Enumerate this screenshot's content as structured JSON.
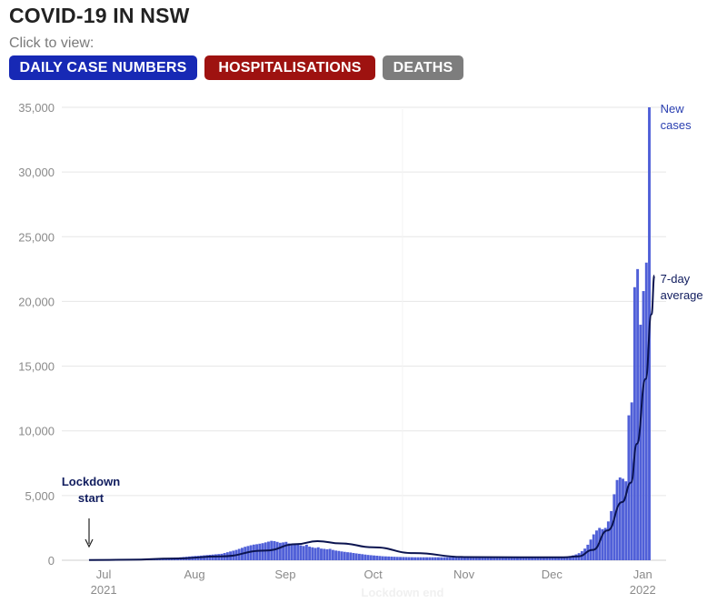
{
  "header": {
    "title": "COVID-19 IN NSW",
    "subtitle": "Click to view:"
  },
  "buttons": {
    "cases": "DAILY CASE NUMBERS",
    "hospitalisations": "HOSPITALISATIONS",
    "deaths": "DEATHS"
  },
  "colors": {
    "bars": "#5060d8",
    "average_line": "#0b1450",
    "grid": "#e6e6e6",
    "cases_button": "#1729b5",
    "hosp_button": "#9e1210",
    "deaths_button": "#7d7d7d"
  },
  "chart_data": {
    "type": "bar",
    "title": "",
    "xlabel": "",
    "ylabel": "",
    "ylim": [
      0,
      35000
    ],
    "y_ticks": [
      0,
      5000,
      10000,
      15000,
      20000,
      25000,
      30000,
      35000
    ],
    "y_tick_labels": [
      "0",
      "5,000",
      "10,000",
      "15,000",
      "20,000",
      "25,000",
      "30,000",
      "35,000"
    ],
    "x_range": [
      "2021-06-26",
      "2022-01-09"
    ],
    "x_ticks": [
      {
        "date": "2021-07-01",
        "label": "Jul",
        "sublabel": "2021"
      },
      {
        "date": "2021-08-01",
        "label": "Aug",
        "sublabel": ""
      },
      {
        "date": "2021-09-01",
        "label": "Sep",
        "sublabel": ""
      },
      {
        "date": "2021-10-01",
        "label": "Oct",
        "sublabel": ""
      },
      {
        "date": "2021-11-01",
        "label": "Nov",
        "sublabel": ""
      },
      {
        "date": "2021-12-01",
        "label": "Dec",
        "sublabel": ""
      },
      {
        "date": "2022-01-01",
        "label": "Jan",
        "sublabel": "2022"
      }
    ],
    "start_date": "2021-06-26",
    "series": [
      {
        "name": "New cases",
        "kind": "bar",
        "values": [
          20,
          20,
          20,
          20,
          20,
          20,
          25,
          30,
          30,
          30,
          30,
          30,
          35,
          40,
          50,
          60,
          70,
          80,
          90,
          100,
          110,
          120,
          130,
          140,
          150,
          160,
          170,
          180,
          190,
          200,
          210,
          230,
          250,
          270,
          290,
          310,
          330,
          340,
          360,
          380,
          400,
          420,
          440,
          460,
          480,
          500,
          560,
          620,
          680,
          740,
          800,
          880,
          960,
          1040,
          1100,
          1160,
          1210,
          1240,
          1280,
          1320,
          1380,
          1440,
          1500,
          1480,
          1420,
          1350,
          1380,
          1420,
          1300,
          1200,
          1300,
          1250,
          1150,
          1100,
          1200,
          1050,
          1000,
          950,
          1000,
          900,
          880,
          850,
          880,
          800,
          750,
          720,
          680,
          650,
          620,
          600,
          560,
          530,
          500,
          470,
          440,
          410,
          390,
          370,
          350,
          330,
          310,
          300,
          290,
          280,
          270,
          260,
          255,
          250,
          245,
          240,
          235,
          230,
          230,
          230,
          230,
          230,
          230,
          230,
          230,
          230,
          230,
          230,
          230,
          230,
          230,
          230,
          230,
          230,
          230,
          230,
          230,
          230,
          230,
          230,
          230,
          230,
          230,
          230,
          230,
          230,
          230,
          230,
          230,
          230,
          230,
          230,
          230,
          230,
          230,
          230,
          230,
          230,
          230,
          230,
          230,
          230,
          230,
          230,
          230,
          230,
          230,
          230,
          250,
          280,
          320,
          380,
          450,
          550,
          700,
          900,
          1200,
          1600,
          2000,
          2300,
          2500,
          2400,
          2500,
          3000,
          3800,
          5100,
          6200,
          6400,
          6300,
          6100,
          11200,
          12200,
          21100,
          22500,
          18200,
          20800,
          23000,
          35000
        ],
        "label_lines": [
          "New",
          "cases"
        ]
      },
      {
        "name": "7-day average",
        "kind": "line",
        "points": [
          [
            "2021-06-26",
            20
          ],
          [
            "2021-07-10",
            40
          ],
          [
            "2021-07-25",
            130
          ],
          [
            "2021-08-10",
            300
          ],
          [
            "2021-08-25",
            750
          ],
          [
            "2021-09-05",
            1250
          ],
          [
            "2021-09-12",
            1480
          ],
          [
            "2021-09-20",
            1300
          ],
          [
            "2021-10-01",
            1000
          ],
          [
            "2021-10-15",
            550
          ],
          [
            "2021-11-01",
            250
          ],
          [
            "2021-11-20",
            230
          ],
          [
            "2021-12-05",
            230
          ],
          [
            "2021-12-10",
            300
          ],
          [
            "2021-12-15",
            800
          ],
          [
            "2021-12-20",
            2300
          ],
          [
            "2021-12-25",
            4500
          ],
          [
            "2021-12-28",
            6000
          ],
          [
            "2021-12-30",
            9000
          ],
          [
            "2022-01-02",
            14000
          ],
          [
            "2022-01-04",
            19000
          ],
          [
            "2022-01-05",
            22000
          ]
        ],
        "label_lines": [
          "7-day",
          "average"
        ]
      }
    ],
    "annotations": [
      {
        "text_lines": [
          "Lockdown",
          "start"
        ],
        "date": "2021-06-26",
        "arrow": true
      },
      {
        "text": "Lockdown end",
        "date": "2021-10-11",
        "faint": true
      }
    ],
    "grid": true,
    "legend": "inline-right"
  }
}
